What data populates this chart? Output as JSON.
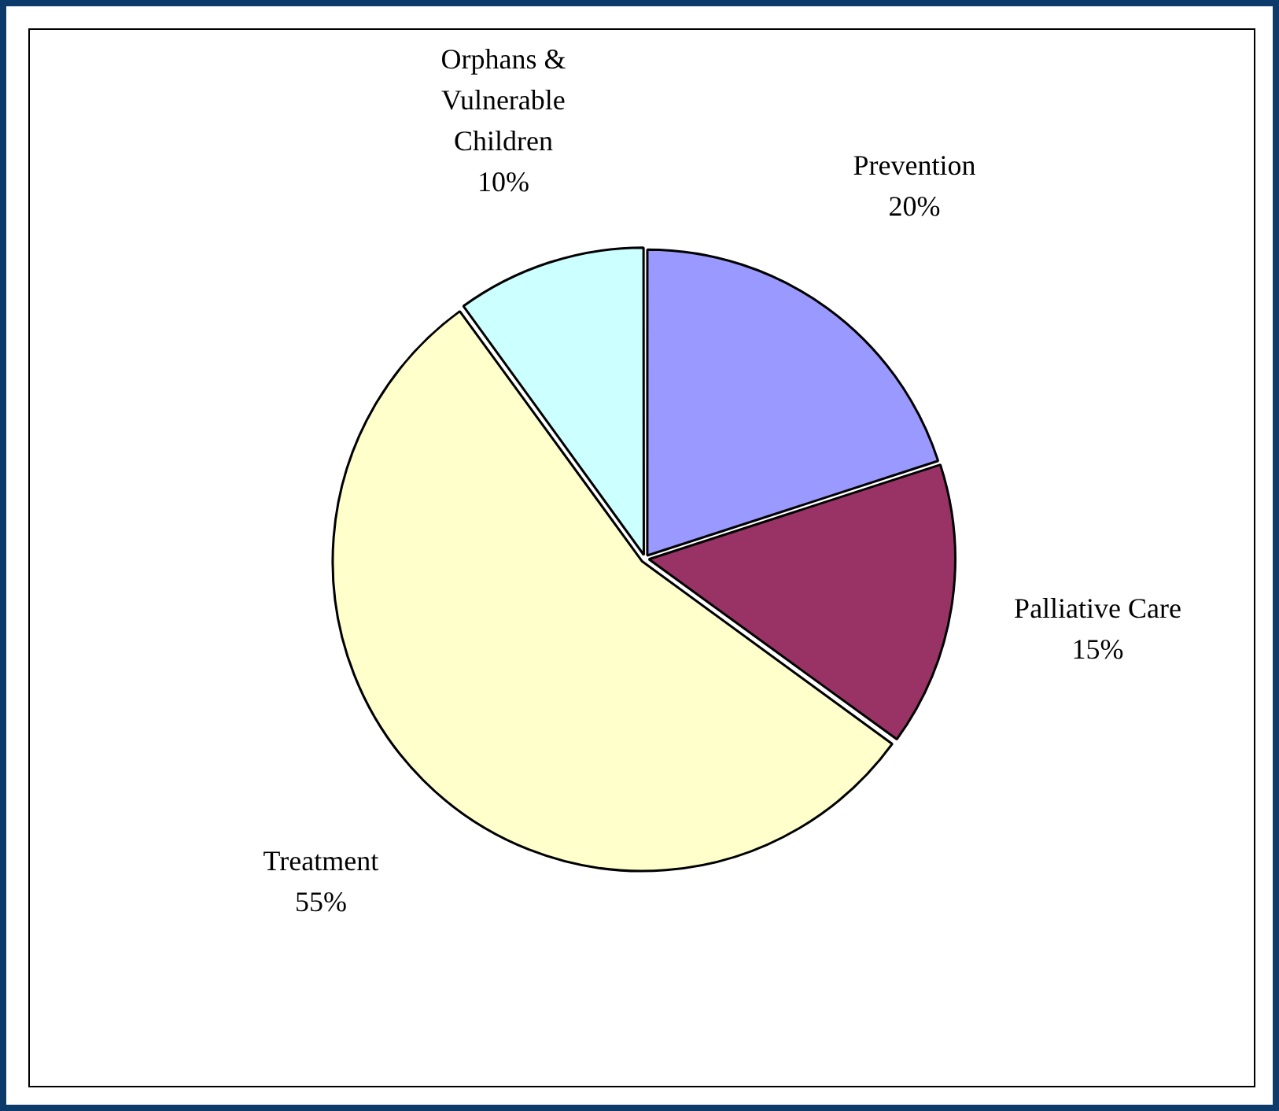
{
  "chart_data": {
    "type": "pie",
    "categories": [
      "Prevention",
      "Palliative Care",
      "Treatment",
      "Orphans & Vulnerable Children"
    ],
    "values": [
      20,
      15,
      55,
      10
    ],
    "colors": [
      "#9999ff",
      "#993366",
      "#ffffcc",
      "#ccffff"
    ],
    "value_labels": [
      "20%",
      "15%",
      "55%",
      "10%"
    ],
    "legend": false
  }
}
